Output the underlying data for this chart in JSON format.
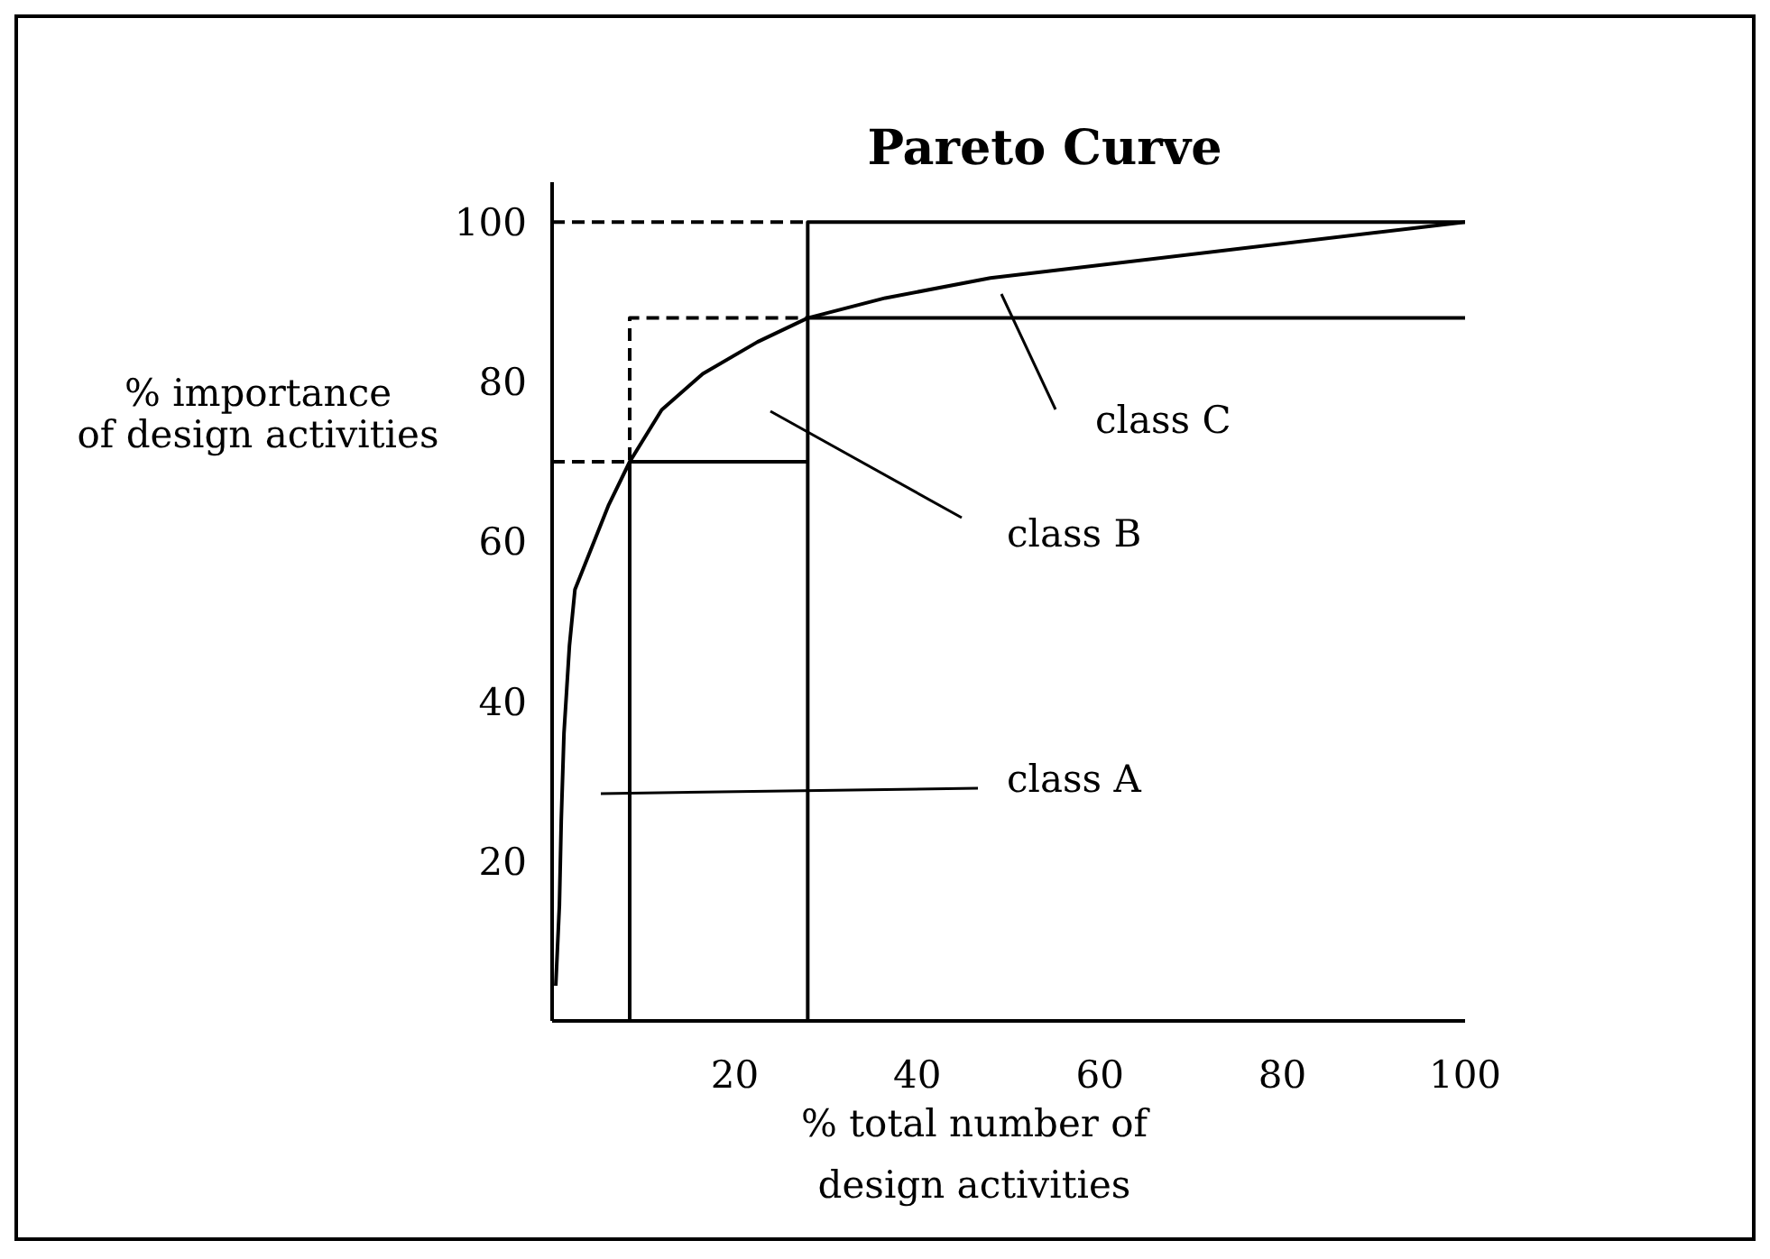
{
  "chart_data": {
    "type": "line",
    "title": "Pareto Curve",
    "xlabel": "% total number of\ndesign activities",
    "ylabel": "% importance\nof design activities",
    "xlim": [
      0,
      100
    ],
    "xticks": [
      20,
      40,
      60,
      80,
      100
    ],
    "ylim": [
      0,
      105
    ],
    "yticks": [
      20,
      40,
      60,
      80,
      100
    ],
    "series": [
      {
        "color": "#000000",
        "line_style": "solid",
        "x": [
          0.4,
          0.8,
          1,
          1.3,
          1.9,
          2.5,
          6.2,
          8.5,
          12,
          16.5,
          22.5,
          28,
          36.5,
          48,
          100
        ],
        "values": [
          4.4,
          14.5,
          25,
          36,
          47,
          54,
          64.6,
          70,
          76.5,
          81,
          85,
          88,
          90.5,
          93,
          100
        ]
      },
      {
        "color": "#000000",
        "line_style": "solid",
        "x": [
          8.5,
          8.5,
          28
        ],
        "values": [
          0,
          70,
          70
        ]
      },
      {
        "color": "#000000",
        "line_style": "solid",
        "x": [
          28,
          28,
          100
        ],
        "values": [
          0,
          100,
          100
        ]
      },
      {
        "color": "#000000",
        "line_style": "solid",
        "x": [
          28,
          100
        ],
        "values": [
          88,
          88
        ]
      },
      {
        "color": "#000000",
        "line_style": "dashed",
        "x": [
          0,
          28
        ],
        "values": [
          100,
          100
        ]
      },
      {
        "color": "#000000",
        "line_style": "dashed",
        "x": [
          0,
          8.5,
          8.5,
          28
        ],
        "values": [
          70,
          70,
          88,
          88
        ]
      }
    ],
    "annotations": [
      "class A",
      "class B",
      "class C"
    ]
  }
}
